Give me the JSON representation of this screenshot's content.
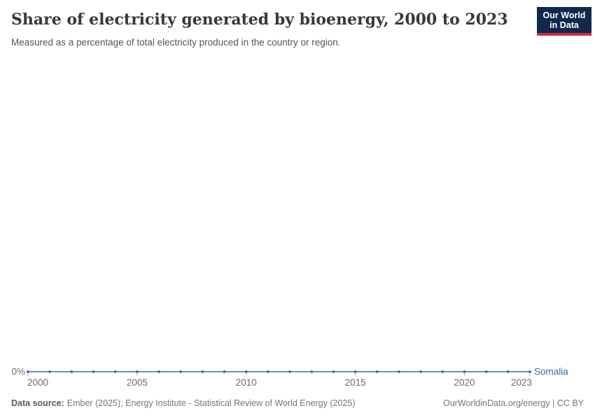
{
  "chart_data": {
    "type": "line",
    "title": "Share of electricity generated by bioenergy, 2000 to 2023",
    "subtitle": "Measured as a percentage of total electricity produced in the country or region.",
    "xlabel": "",
    "ylabel": "",
    "unit": "%",
    "grid": false,
    "legend_position": "end-of-line",
    "x_range": [
      2000,
      2023
    ],
    "x_ticks": [
      2000,
      2005,
      2010,
      2015,
      2020,
      2023
    ],
    "x_tick_labels": [
      "2000",
      "2005",
      "2010",
      "2015",
      "2020",
      "2023"
    ],
    "y_ticks": [
      {
        "value": 0,
        "label": "0%"
      }
    ],
    "series": [
      {
        "name": "Somalia",
        "color": "#4166ac",
        "x": [
          2000,
          2001,
          2002,
          2003,
          2004,
          2005,
          2006,
          2007,
          2008,
          2009,
          2010,
          2011,
          2012,
          2013,
          2014,
          2015,
          2016,
          2017,
          2018,
          2019,
          2020,
          2021,
          2022,
          2023
        ],
        "values": [
          0,
          0,
          0,
          0,
          0,
          0,
          0,
          0,
          0,
          0,
          0,
          0,
          0,
          0,
          0,
          0,
          0,
          0,
          0,
          0,
          0,
          0,
          0,
          0
        ]
      }
    ],
    "axis_text_color": "#6b6b6b",
    "tick_mark_color": "#b3b3b3"
  },
  "logo": {
    "line1": "Our World",
    "line2": "in Data",
    "bg_color": "#10284d",
    "bar_color": "#cf2d3c"
  },
  "footer": {
    "data_source_label": "Data source:",
    "data_source": "Ember (2025); Energy Institute - Statistical Review of World Energy (2025)",
    "attribution": "OurWorldinData.org/energy | CC BY"
  }
}
